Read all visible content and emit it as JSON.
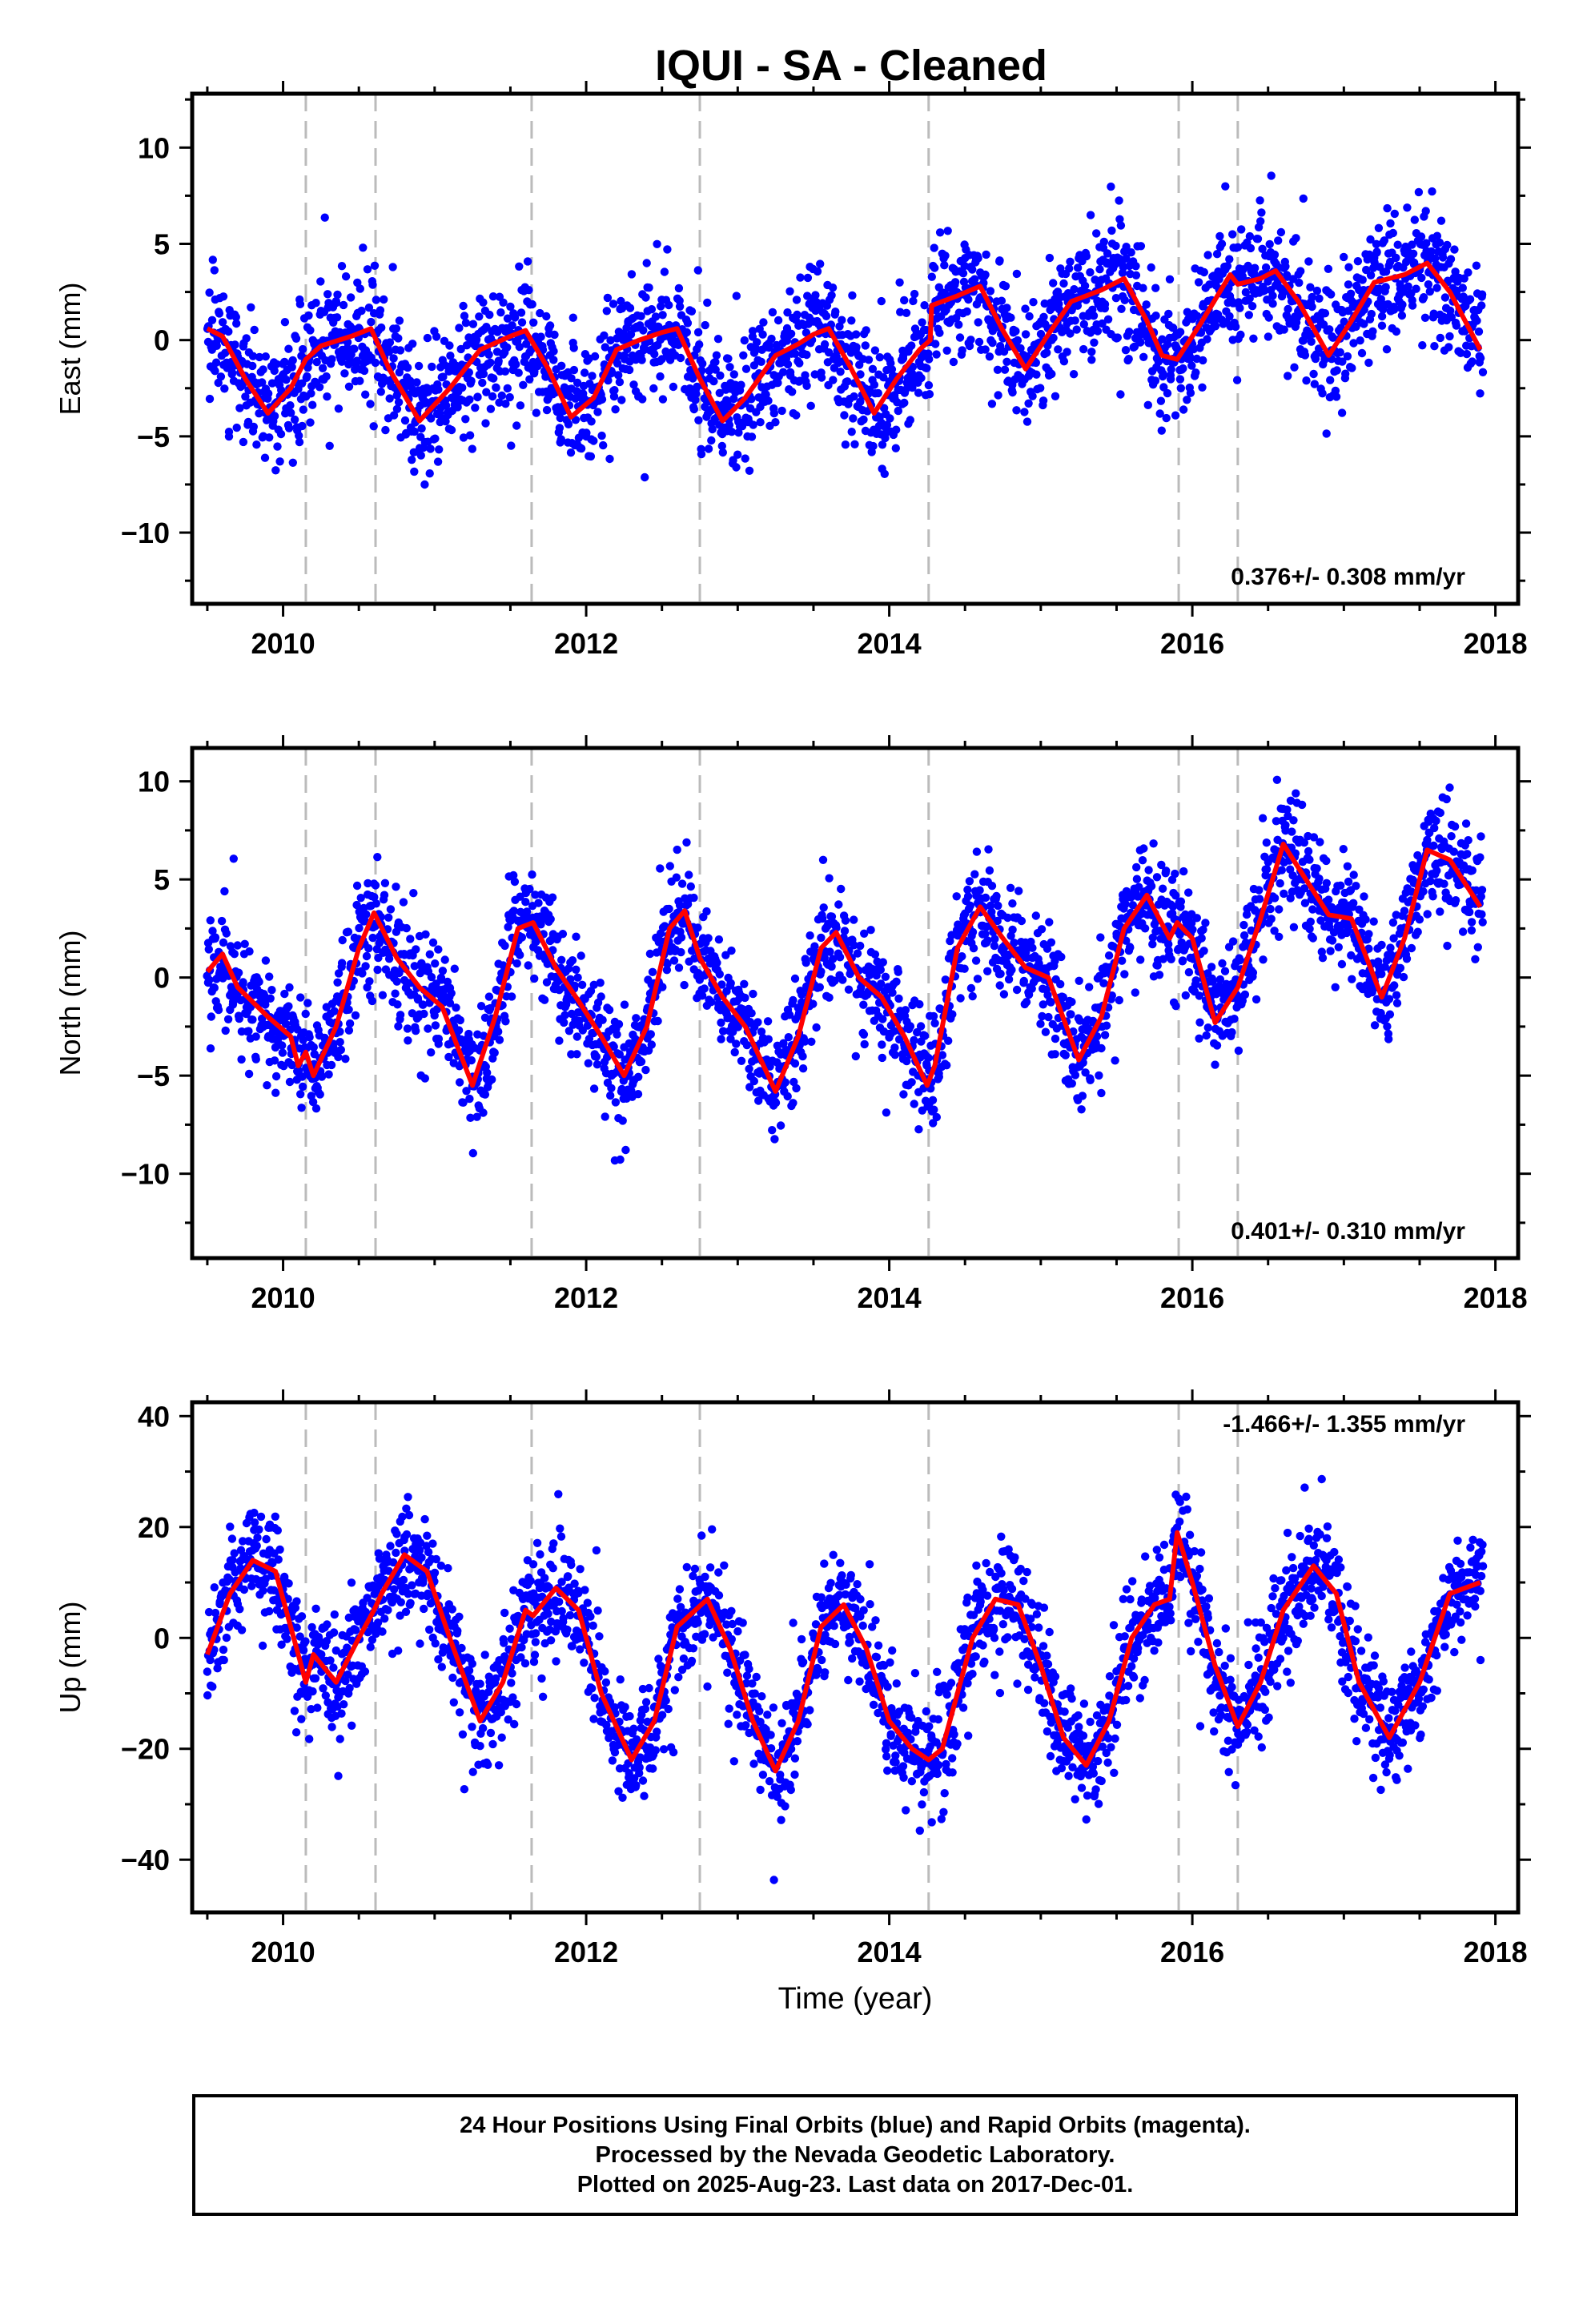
{
  "title": "IQUI  - SA - Cleaned",
  "xlabel": "Time (year)",
  "colors": {
    "final_orbits": "#0000ff",
    "model_fit": "#ff0000",
    "event_lines": "#bbbbbb"
  },
  "footer": {
    "line1": "24 Hour Positions Using Final Orbits (blue) and Rapid Orbits (magenta).",
    "line2": "Processed by the Nevada Geodetic Laboratory.",
    "line3": "Plotted on 2025-Aug-23. Last data on 2017-Dec-01."
  },
  "chart_data": [
    {
      "type": "scatter",
      "component": "east",
      "ylabel": "East (mm)",
      "rate_text": "0.376+/- 0.308 mm/yr",
      "xlim": [
        2009.4,
        2018.15
      ],
      "ylim": [
        -13.7,
        12.8
      ],
      "xticks": [
        2010,
        2012,
        2014,
        2016,
        2018
      ],
      "yticks": [
        -10,
        -5,
        0,
        5,
        10
      ],
      "event_lines": [
        2010.15,
        2010.61,
        2011.64,
        2012.75,
        2014.26,
        2015.91,
        2016.3
      ],
      "data_span": [
        2009.5,
        2017.92
      ],
      "points": {
        "amplitude_mm": 2.5,
        "noise_mm": 1.6,
        "approx_count": 2500,
        "steps": [
          {
            "at": 2014.27,
            "offset_mm": 2.2
          }
        ]
      },
      "fit": {
        "name": "model",
        "x": [
          2009.5,
          2009.6,
          2009.75,
          2009.9,
          2010.05,
          2010.15,
          2010.25,
          2010.45,
          2010.58,
          2010.7,
          2010.9,
          2011.1,
          2011.3,
          2011.5,
          2011.6,
          2011.75,
          2011.9,
          2012.05,
          2012.2,
          2012.35,
          2012.5,
          2012.6,
          2012.75,
          2012.9,
          2013.05,
          2013.25,
          2013.4,
          2013.5,
          2013.6,
          2013.75,
          2013.9,
          2014.05,
          2014.2,
          2014.27,
          2014.28,
          2014.45,
          2014.6,
          2014.75,
          2014.9,
          2015.05,
          2015.2,
          2015.4,
          2015.55,
          2015.7,
          2015.8,
          2015.9,
          2016.05,
          2016.25,
          2016.3,
          2016.45,
          2016.55,
          2016.7,
          2016.9,
          2017.05,
          2017.2,
          2017.4,
          2017.55,
          2017.7,
          2017.9
        ],
        "y": [
          0.6,
          0.2,
          -2.0,
          -3.8,
          -2.5,
          -1.0,
          -0.3,
          0.2,
          0.6,
          -1.5,
          -4.2,
          -2.5,
          -0.5,
          0.2,
          0.5,
          -1.5,
          -4.0,
          -3.0,
          -0.5,
          0.0,
          0.4,
          0.6,
          -2.0,
          -4.2,
          -3.0,
          -0.8,
          -0.2,
          0.3,
          0.6,
          -1.5,
          -3.8,
          -2.0,
          -0.5,
          0.0,
          1.8,
          2.3,
          2.8,
          0.5,
          -1.5,
          0.3,
          2.0,
          2.6,
          3.2,
          1.0,
          -0.8,
          -1.0,
          0.8,
          3.4,
          2.9,
          3.2,
          3.6,
          2.0,
          -0.8,
          1.0,
          3.0,
          3.4,
          4.0,
          2.5,
          -0.5
        ]
      }
    },
    {
      "type": "scatter",
      "component": "north",
      "ylabel": "North (mm)",
      "rate_text": "0.401+/- 0.310 mm/yr",
      "xlim": [
        2009.4,
        2018.15
      ],
      "ylim": [
        -14.3,
        11.7
      ],
      "xticks": [
        2010,
        2012,
        2014,
        2016,
        2018
      ],
      "yticks": [
        -10,
        -5,
        0,
        5,
        10
      ],
      "event_lines": [
        2010.15,
        2010.61,
        2011.64,
        2012.75,
        2014.26,
        2015.91,
        2016.3
      ],
      "data_span": [
        2009.5,
        2017.92
      ],
      "points": {
        "amplitude_mm": 4.0,
        "noise_mm": 1.4,
        "approx_count": 2500,
        "steps": []
      },
      "fit": {
        "name": "model",
        "x": [
          2009.5,
          2009.6,
          2009.7,
          2009.9,
          2010.05,
          2010.1,
          2010.15,
          2010.2,
          2010.35,
          2010.5,
          2010.6,
          2010.75,
          2010.9,
          2011.05,
          2011.25,
          2011.4,
          2011.55,
          2011.65,
          2011.8,
          2011.95,
          2012.1,
          2012.25,
          2012.4,
          2012.55,
          2012.65,
          2012.75,
          2012.9,
          2013.05,
          2013.25,
          2013.4,
          2013.55,
          2013.65,
          2013.8,
          2013.95,
          2014.1,
          2014.25,
          2014.3,
          2014.45,
          2014.6,
          2014.75,
          2014.9,
          2015.05,
          2015.25,
          2015.4,
          2015.55,
          2015.7,
          2015.85,
          2015.9,
          2016.0,
          2016.15,
          2016.3,
          2016.45,
          2016.6,
          2016.75,
          2016.9,
          2017.05,
          2017.25,
          2017.4,
          2017.55,
          2017.7,
          2017.9
        ],
        "y": [
          0.3,
          1.2,
          -0.5,
          -2.0,
          -3.0,
          -4.5,
          -3.8,
          -5.0,
          -2.5,
          1.5,
          3.3,
          1.0,
          -0.5,
          -1.5,
          -5.5,
          -2.0,
          2.5,
          2.8,
          0.5,
          -1.2,
          -3.0,
          -5.0,
          -2.5,
          2.5,
          3.4,
          1.0,
          -1.0,
          -2.5,
          -5.8,
          -3.0,
          1.5,
          2.3,
          0.0,
          -1.0,
          -3.0,
          -5.5,
          -4.5,
          1.5,
          3.6,
          2.0,
          0.5,
          0.0,
          -4.2,
          -2.0,
          2.5,
          4.2,
          2.0,
          2.8,
          2.0,
          -2.3,
          -0.5,
          3.0,
          6.8,
          5.0,
          3.2,
          3.0,
          -1.0,
          2.0,
          6.5,
          6.0,
          3.6
        ]
      }
    },
    {
      "type": "scatter",
      "component": "up",
      "ylabel": "Up (mm)",
      "rate_text": "-1.466+/- 1.355 mm/yr",
      "xlim": [
        2009.4,
        2018.15
      ],
      "ylim": [
        -49.5,
        42.5
      ],
      "xticks": [
        2010,
        2012,
        2014,
        2016,
        2018
      ],
      "yticks": [
        -40,
        -20,
        0,
        20,
        40
      ],
      "event_lines": [
        2010.15,
        2010.61,
        2011.64,
        2012.75,
        2014.26,
        2015.91,
        2016.3
      ],
      "data_span": [
        2009.5,
        2017.92
      ],
      "points": {
        "amplitude_mm": 14.0,
        "noise_mm": 5.0,
        "approx_count": 2500,
        "steps": []
      },
      "fit": {
        "name": "model",
        "x": [
          2009.5,
          2009.65,
          2009.8,
          2009.95,
          2010.1,
          2010.15,
          2010.2,
          2010.35,
          2010.5,
          2010.6,
          2010.65,
          2010.8,
          2010.95,
          2011.1,
          2011.3,
          2011.45,
          2011.6,
          2011.65,
          2011.8,
          2011.95,
          2012.1,
          2012.3,
          2012.45,
          2012.6,
          2012.8,
          2012.95,
          2013.1,
          2013.25,
          2013.4,
          2013.55,
          2013.7,
          2013.85,
          2014.0,
          2014.15,
          2014.26,
          2014.35,
          2014.55,
          2014.7,
          2014.85,
          2015.0,
          2015.15,
          2015.3,
          2015.45,
          2015.6,
          2015.75,
          2015.85,
          2015.9,
          2016.0,
          2016.15,
          2016.3,
          2016.45,
          2016.6,
          2016.8,
          2016.95,
          2017.1,
          2017.3,
          2017.5,
          2017.7,
          2017.9
        ],
        "y": [
          -3.0,
          8.0,
          14.0,
          12.0,
          -3.0,
          -8.0,
          -3.0,
          -8.0,
          0.0,
          5.0,
          8.0,
          15.0,
          12.0,
          0.0,
          -15.0,
          -8.0,
          5.0,
          4.0,
          9.0,
          5.0,
          -10.0,
          -22.0,
          -15.0,
          2.0,
          7.0,
          -2.0,
          -15.0,
          -24.0,
          -15.0,
          2.0,
          6.0,
          -2.0,
          -15.0,
          -20.0,
          -22.0,
          -20.0,
          0.0,
          7.0,
          6.0,
          -5.0,
          -18.0,
          -23.0,
          -15.0,
          0.0,
          6.0,
          7.0,
          19.0,
          10.0,
          -5.0,
          -16.0,
          -8.0,
          5.0,
          13.0,
          8.0,
          -8.0,
          -18.0,
          -8.0,
          8.0,
          10.0
        ]
      }
    }
  ]
}
